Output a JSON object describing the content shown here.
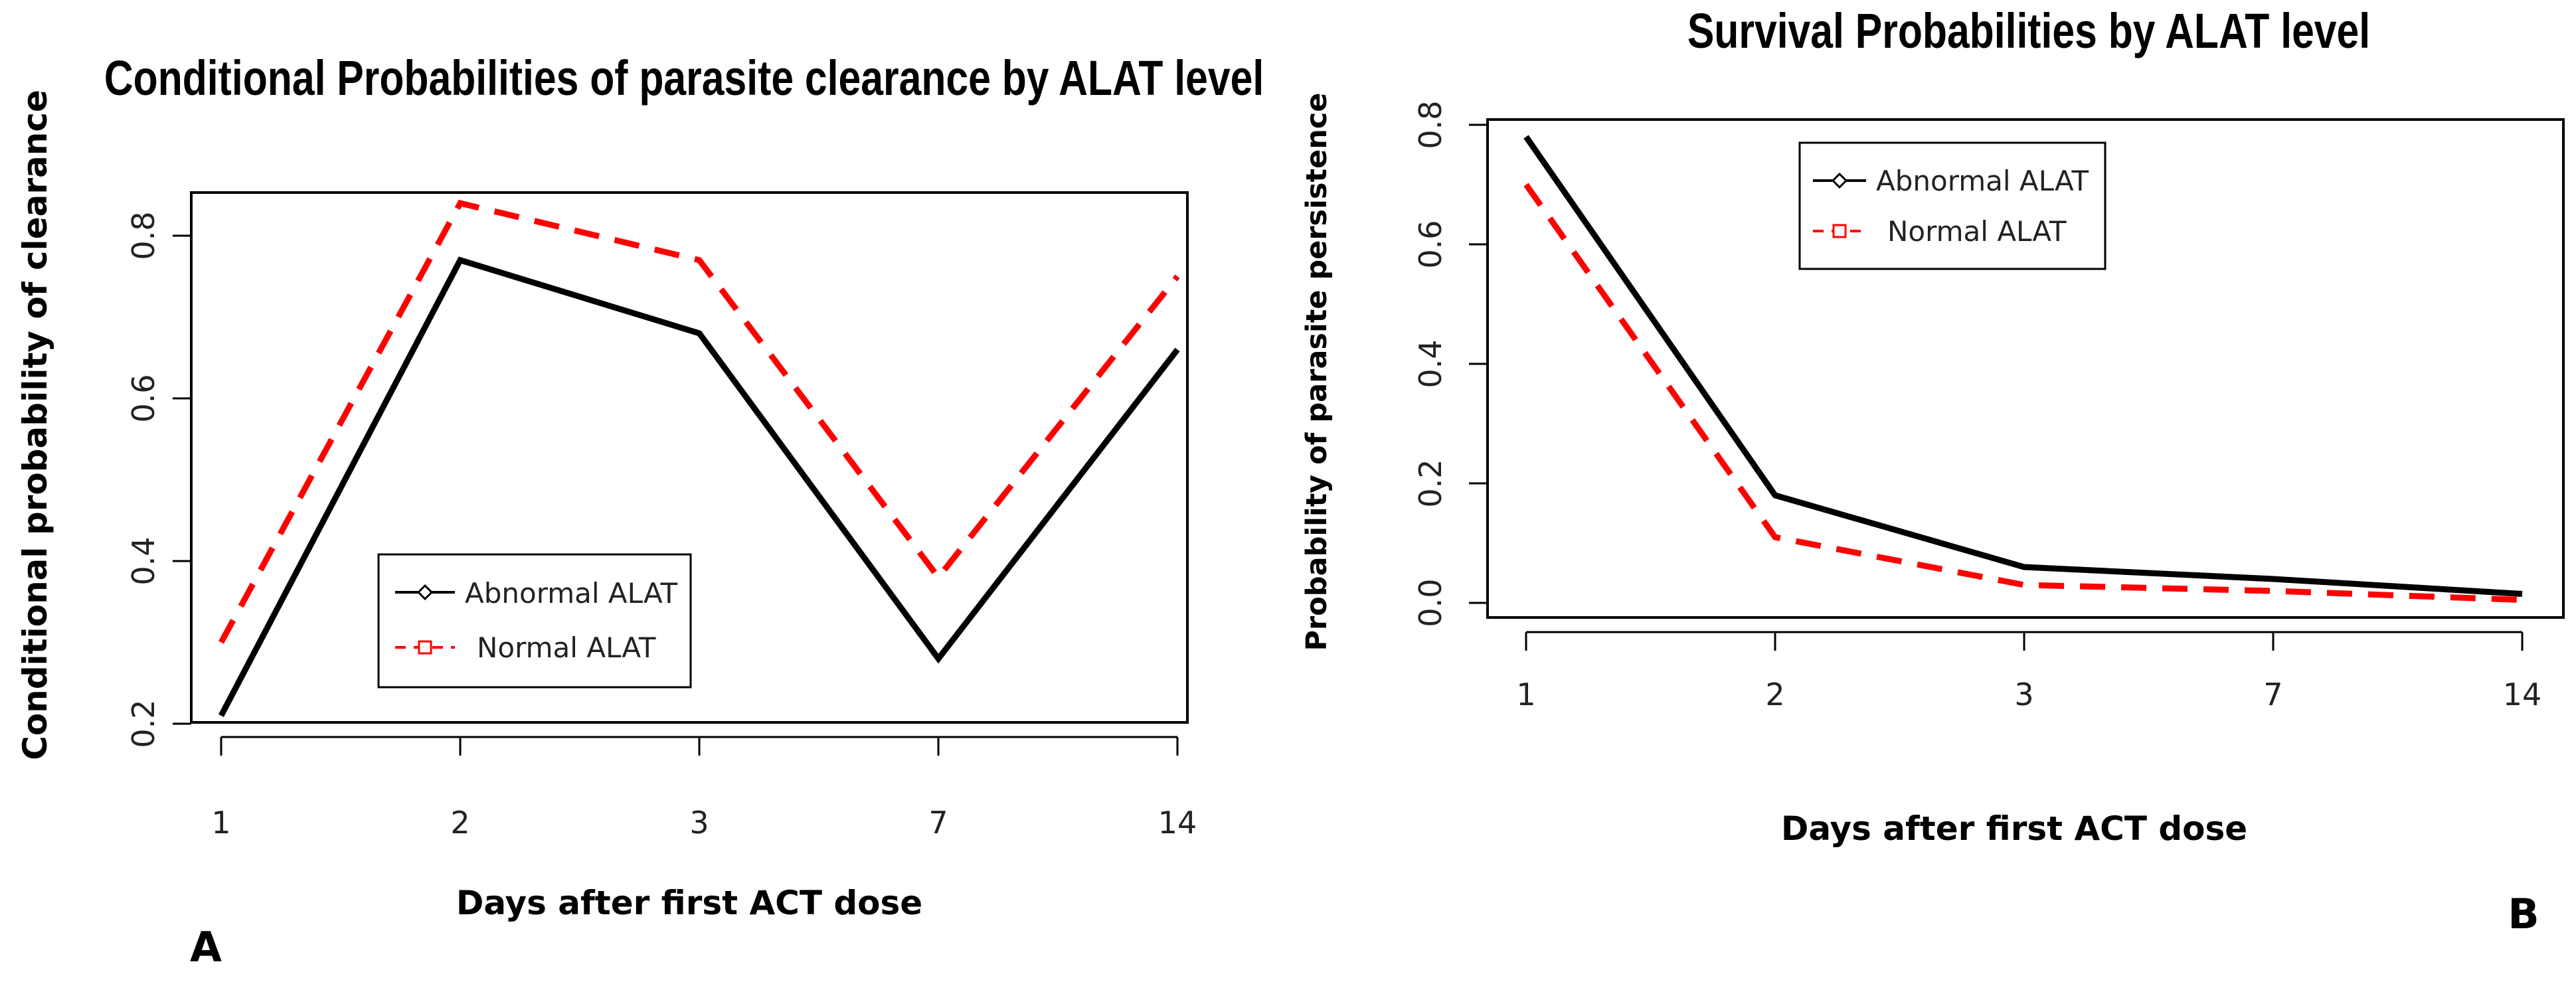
{
  "chart_data": [
    {
      "type": "line",
      "panel_label": "A",
      "title": "Conditional Probabilities of parasite clearance by ALAT level",
      "xlabel": "Days after first ACT dose",
      "ylabel": "Conditional probability of clearance",
      "categories": [
        "1",
        "2",
        "3",
        "7",
        "14"
      ],
      "yticks": [
        "0.2",
        "0.4",
        "0.6",
        "0.8"
      ],
      "ylim": [
        0.2,
        0.85
      ],
      "legend": {
        "position": "bottom-left",
        "entries": [
          "Abnormal ALAT",
          "Normal ALAT"
        ]
      },
      "series": [
        {
          "name": "Abnormal ALAT",
          "color": "#000000",
          "style": "solid",
          "values": [
            0.21,
            0.77,
            0.68,
            0.28,
            0.66
          ]
        },
        {
          "name": "Normal ALAT",
          "color": "#ff0000",
          "style": "dashed",
          "values": [
            0.3,
            0.84,
            0.77,
            0.38,
            0.75
          ]
        }
      ]
    },
    {
      "type": "line",
      "panel_label": "B",
      "title": "Survival  Probabilities by ALAT level",
      "xlabel": "Days after first ACT dose",
      "ylabel": "Probability of parasite persistence",
      "categories": [
        "1",
        "2",
        "3",
        "7",
        "14"
      ],
      "yticks": [
        "0.0",
        "0.2",
        "0.4",
        "0.6",
        "0.8"
      ],
      "ylim": [
        0.0,
        0.8
      ],
      "legend": {
        "position": "top-center",
        "entries": [
          "Abnormal ALAT",
          "Normal ALAT"
        ]
      },
      "series": [
        {
          "name": "Abnormal ALAT",
          "color": "#000000",
          "style": "solid",
          "values": [
            0.78,
            0.18,
            0.06,
            0.04,
            0.015
          ]
        },
        {
          "name": "Normal ALAT",
          "color": "#ff0000",
          "style": "dashed",
          "values": [
            0.7,
            0.11,
            0.03,
            0.02,
            0.005
          ]
        }
      ]
    }
  ]
}
